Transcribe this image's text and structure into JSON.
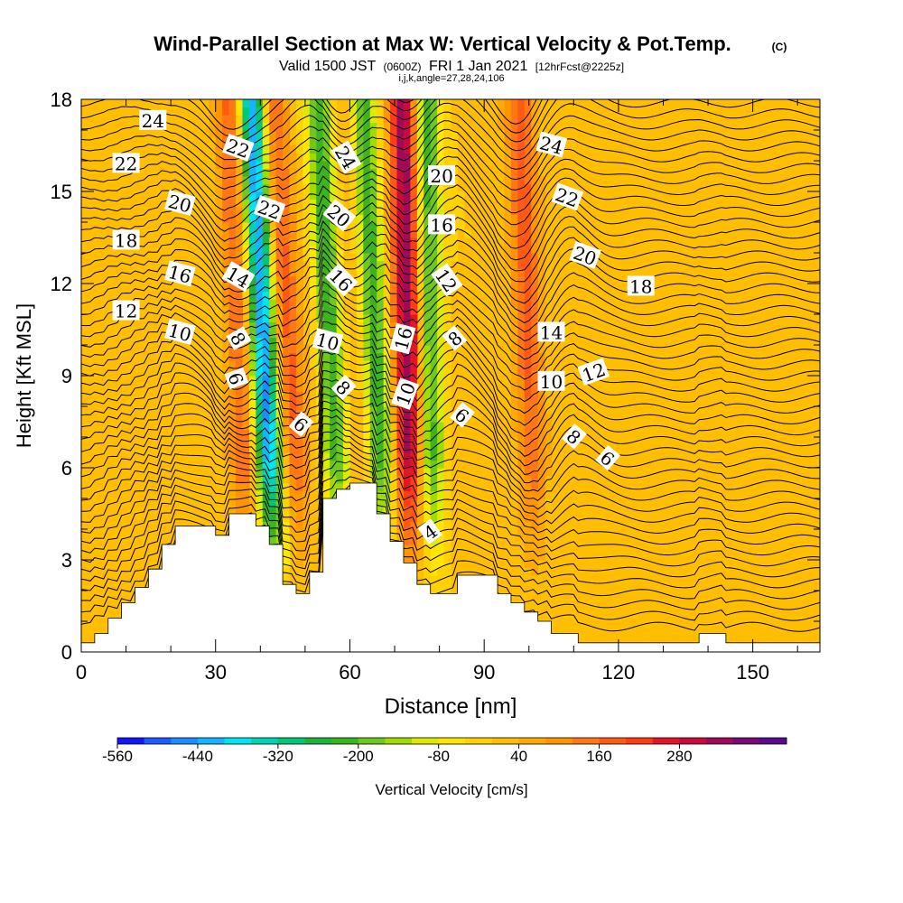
{
  "chart_data": {
    "type": "heatmap",
    "title": "Wind-Parallel Section at Max W: Vertical Velocity & Pot.Temp.",
    "title_unit": "(C)",
    "subtitle_parts": [
      "Valid 1500 JST",
      "(0600Z)",
      "FRI 1 Jan 2021",
      "[12hrFcst@2225z]"
    ],
    "subtitle2": "i,j,k,angle=27,28,24,106",
    "xlabel": "Distance [nm]",
    "ylabel": "Height [Kft MSL]",
    "xlim": [
      0,
      165
    ],
    "ylim": [
      0,
      18
    ],
    "xticks": [
      "0",
      "30",
      "60",
      "90",
      "120",
      "150"
    ],
    "yticks": [
      "0",
      "3",
      "6",
      "9",
      "12",
      "15",
      "18"
    ],
    "colorbar": {
      "label": "Vertical Velocity [cm/s]",
      "tick_labels": [
        "-560",
        "-440",
        "-320",
        "-200",
        "-80",
        "40",
        "160",
        "280"
      ],
      "colors": [
        "#1414ff",
        "#1e5aff",
        "#1e8cff",
        "#14b4ff",
        "#00e6f0",
        "#00d2b4",
        "#00c878",
        "#1eb43c",
        "#3cb41e",
        "#6ec81e",
        "#a0dc00",
        "#dceb00",
        "#ffe600",
        "#ffd200",
        "#ffbe00",
        "#ffaa00",
        "#ff9600",
        "#ff7814",
        "#ff5a14",
        "#ff3c14",
        "#e61428",
        "#c80a3c",
        "#a00a5a",
        "#780a78",
        "#5a0a8c"
      ]
    },
    "updraft_bands": [
      {
        "x_bottom": 38,
        "x_top": 33,
        "peak": 160,
        "green_side": "right"
      },
      {
        "x_bottom": 50,
        "x_top": 43,
        "peak": 160,
        "green_side": "left"
      },
      {
        "x_bottom": 64,
        "x_top": 58,
        "peak": 40,
        "green_side": "both"
      },
      {
        "x_bottom": 74,
        "x_top": 72,
        "peak": 340,
        "green_side": "right"
      },
      {
        "x_bottom": 102,
        "x_top": 98,
        "peak": 160,
        "green_side": "none"
      }
    ],
    "terrain": [
      [
        0,
        0.3
      ],
      [
        3,
        0.3
      ],
      [
        3,
        0.6
      ],
      [
        6,
        0.6
      ],
      [
        6,
        1.1
      ],
      [
        9,
        1.1
      ],
      [
        9,
        1.6
      ],
      [
        12,
        1.6
      ],
      [
        12,
        2.1
      ],
      [
        15,
        2.1
      ],
      [
        15,
        2.7
      ],
      [
        18,
        2.7
      ],
      [
        18,
        3.5
      ],
      [
        21,
        3.5
      ],
      [
        21,
        4.1
      ],
      [
        30,
        4.1
      ],
      [
        30,
        3.8
      ],
      [
        33,
        3.8
      ],
      [
        33,
        4.5
      ],
      [
        39,
        4.5
      ],
      [
        39,
        4.1
      ],
      [
        42,
        4.1
      ],
      [
        42,
        3.5
      ],
      [
        45,
        3.5
      ],
      [
        45,
        2.2
      ],
      [
        48,
        2.2
      ],
      [
        48,
        1.9
      ],
      [
        51,
        1.9
      ],
      [
        51,
        2.6
      ],
      [
        54,
        2.6
      ],
      [
        54,
        5.0
      ],
      [
        57,
        5.0
      ],
      [
        57,
        5.3
      ],
      [
        60,
        5.3
      ],
      [
        60,
        5.5
      ],
      [
        66,
        5.5
      ],
      [
        66,
        4.5
      ],
      [
        69,
        4.5
      ],
      [
        69,
        3.6
      ],
      [
        72,
        3.6
      ],
      [
        72,
        2.9
      ],
      [
        75,
        2.9
      ],
      [
        75,
        2.2
      ],
      [
        78,
        2.2
      ],
      [
        78,
        1.9
      ],
      [
        84,
        1.9
      ],
      [
        84,
        2.5
      ],
      [
        93,
        2.5
      ],
      [
        93,
        1.9
      ],
      [
        96,
        1.9
      ],
      [
        96,
        1.6
      ],
      [
        99,
        1.6
      ],
      [
        99,
        1.3
      ],
      [
        102,
        1.3
      ],
      [
        102,
        1.0
      ],
      [
        105,
        1.0
      ],
      [
        105,
        0.6
      ],
      [
        111,
        0.6
      ],
      [
        111,
        0.3
      ],
      [
        138,
        0.3
      ],
      [
        138,
        0.6
      ],
      [
        144,
        0.6
      ],
      [
        144,
        0.3
      ],
      [
        165,
        0.3
      ]
    ],
    "theta_labels": [
      {
        "text": "24",
        "x": 16,
        "y": 17.3,
        "rot": 0
      },
      {
        "text": "22",
        "x": 10,
        "y": 15.9,
        "rot": 0
      },
      {
        "text": "20",
        "x": 22,
        "y": 14.6,
        "rot": 15
      },
      {
        "text": "18",
        "x": 10,
        "y": 13.4,
        "rot": 0
      },
      {
        "text": "16",
        "x": 22,
        "y": 12.3,
        "rot": 15
      },
      {
        "text": "12",
        "x": 10,
        "y": 11.1,
        "rot": 0
      },
      {
        "text": "10",
        "x": 22,
        "y": 10.4,
        "rot": 15
      },
      {
        "text": "22",
        "x": 35,
        "y": 16.4,
        "rot": 20
      },
      {
        "text": "22",
        "x": 42,
        "y": 14.4,
        "rot": 20
      },
      {
        "text": "14",
        "x": 35,
        "y": 12.2,
        "rot": 30
      },
      {
        "text": "8",
        "x": 35,
        "y": 10.2,
        "rot": 60
      },
      {
        "text": "6",
        "x": 34.5,
        "y": 8.9,
        "rot": 70
      },
      {
        "text": "6",
        "x": 49,
        "y": 7.4,
        "rot": 40
      },
      {
        "text": "24",
        "x": 59,
        "y": 16.1,
        "rot": 60
      },
      {
        "text": "20",
        "x": 57.5,
        "y": 14.2,
        "rot": 40
      },
      {
        "text": "16",
        "x": 58,
        "y": 12.1,
        "rot": 45
      },
      {
        "text": "10",
        "x": 55,
        "y": 10.1,
        "rot": 15
      },
      {
        "text": "8",
        "x": 58.5,
        "y": 8.6,
        "rot": 45
      },
      {
        "text": "16",
        "x": 72,
        "y": 10.2,
        "rot": -75
      },
      {
        "text": "10",
        "x": 72.5,
        "y": 8.4,
        "rot": -70
      },
      {
        "text": "20",
        "x": 80.5,
        "y": 15.5,
        "rot": 0
      },
      {
        "text": "16",
        "x": 80.5,
        "y": 13.9,
        "rot": 0
      },
      {
        "text": "12",
        "x": 81.5,
        "y": 12.1,
        "rot": 55
      },
      {
        "text": "8",
        "x": 83.5,
        "y": 10.2,
        "rot": -40
      },
      {
        "text": "6",
        "x": 85,
        "y": 7.7,
        "rot": 40
      },
      {
        "text": "4",
        "x": 78,
        "y": 3.9,
        "rot": -35
      },
      {
        "text": "24",
        "x": 105,
        "y": 16.5,
        "rot": 15
      },
      {
        "text": "22",
        "x": 108.5,
        "y": 14.8,
        "rot": 20
      },
      {
        "text": "20",
        "x": 112.5,
        "y": 12.9,
        "rot": 20
      },
      {
        "text": "18",
        "x": 125,
        "y": 11.9,
        "rot": 0
      },
      {
        "text": "14",
        "x": 105,
        "y": 10.4,
        "rot": 0
      },
      {
        "text": "10",
        "x": 105,
        "y": 8.8,
        "rot": 0
      },
      {
        "text": "12",
        "x": 114.5,
        "y": 9.1,
        "rot": -20
      },
      {
        "text": "8",
        "x": 110,
        "y": 7.0,
        "rot": 40
      },
      {
        "text": "6",
        "x": 117.5,
        "y": 6.3,
        "rot": 40
      }
    ]
  }
}
